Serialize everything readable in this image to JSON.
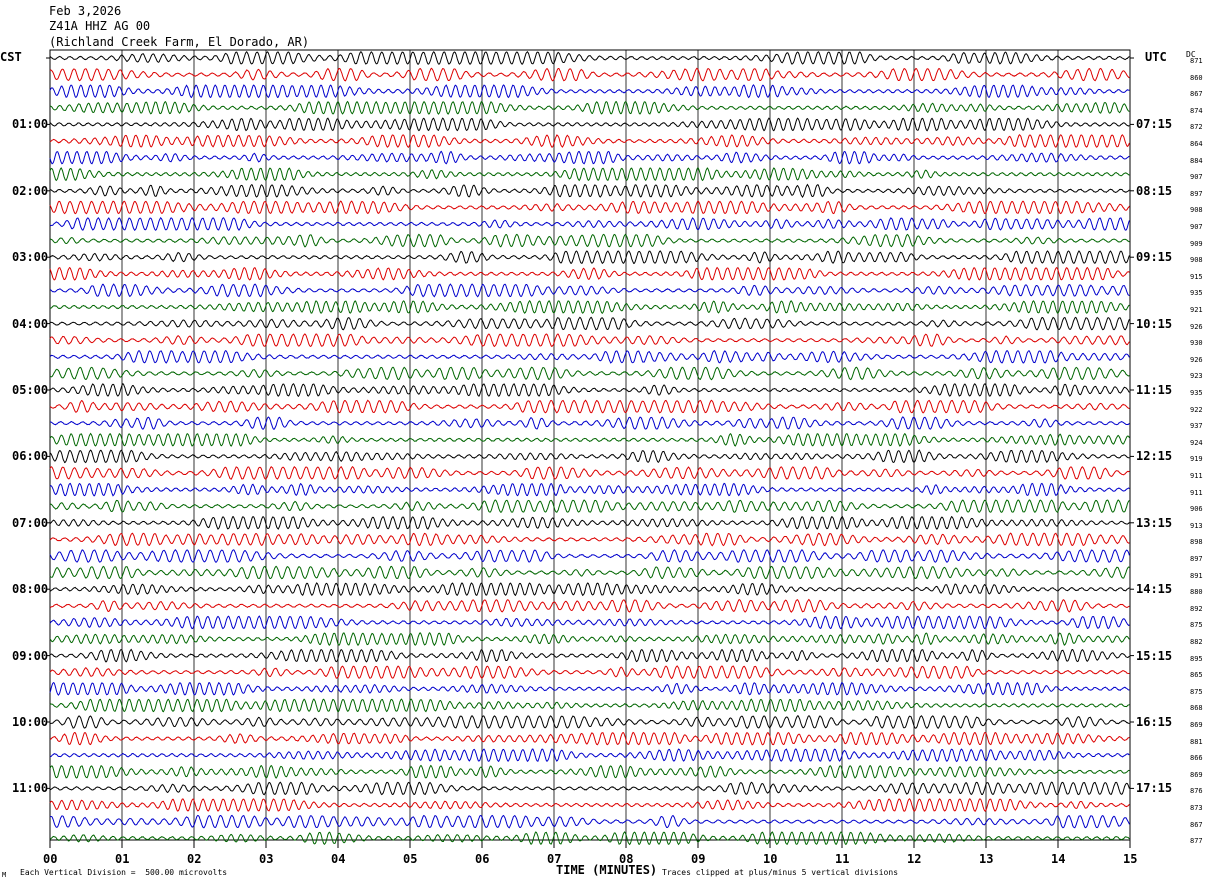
{
  "header": {
    "date": "Feb 3,2026",
    "station": "Z41A HHZ AG 00",
    "location": "(Richland Creek Farm, El Dorado, AR)"
  },
  "tz_left": "CST",
  "tz_right": "UTC",
  "dc_header": "DC",
  "footer": {
    "scale_text": "Each Vertical Division =  500.00 microvolts",
    "clip_text": "Traces clipped at plus/minus 5 vertical divisions",
    "logo_text": "M"
  },
  "chart_data": {
    "type": "line",
    "title": "",
    "xlabel": "TIME (MINUTES)",
    "ylabel": "",
    "xlim": [
      0,
      15
    ],
    "x_ticks": [
      "00",
      "01",
      "02",
      "03",
      "04",
      "05",
      "06",
      "07",
      "08",
      "09",
      "10",
      "11",
      "12",
      "13",
      "14",
      "15"
    ],
    "traces_per_hour": 4,
    "trace_colors": [
      "#000000",
      "#dd0000",
      "#0000cc",
      "#006600"
    ],
    "hour_labels_left": [
      "",
      "01:00",
      "02:00",
      "03:00",
      "04:00",
      "05:00",
      "06:00",
      "07:00",
      "08:00",
      "09:00",
      "10:00",
      "11:00"
    ],
    "hour_labels_right": [
      "",
      "07:15",
      "08:15",
      "09:15",
      "10:15",
      "11:15",
      "12:15",
      "13:15",
      "14:15",
      "15:15",
      "16:15",
      "17:15"
    ],
    "dc_offsets": [
      871,
      860,
      867,
      874,
      872,
      864,
      884,
      907,
      897,
      908,
      907,
      909,
      908,
      915,
      935,
      921,
      926,
      930,
      926,
      923,
      935,
      922,
      937,
      924,
      919,
      911,
      911,
      906,
      913,
      898,
      897,
      891,
      880,
      892,
      875,
      882,
      895,
      865,
      875,
      868,
      869,
      881,
      866,
      869,
      876,
      873,
      867,
      877
    ],
    "grid": true
  }
}
